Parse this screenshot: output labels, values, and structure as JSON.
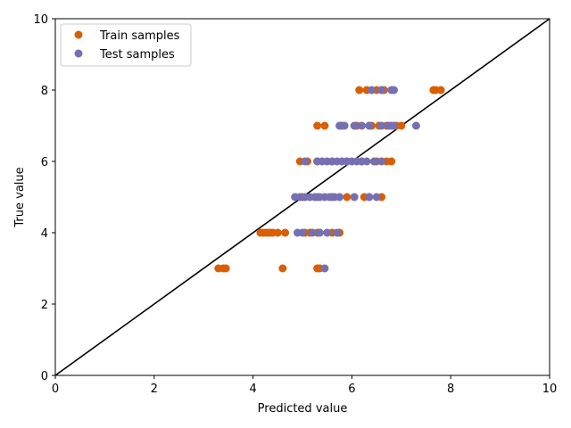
{
  "chart_data": {
    "type": "scatter",
    "xlabel": "Predicted value",
    "ylabel": "True value",
    "xlim": [
      0,
      10
    ],
    "ylim": [
      0,
      10
    ],
    "xticks": [
      "0",
      "2",
      "4",
      "6",
      "8",
      "10"
    ],
    "yticks": [
      "0",
      "2",
      "4",
      "6",
      "8",
      "10"
    ],
    "grid": false,
    "legend_position": "top-left",
    "reference_line": {
      "from": [
        0,
        0
      ],
      "to": [
        10,
        10
      ],
      "color": "#000000"
    },
    "series": [
      {
        "name": "Train samples",
        "color": "#d95f02",
        "points": [
          [
            3.3,
            3
          ],
          [
            3.4,
            3
          ],
          [
            3.45,
            3
          ],
          [
            4.6,
            3
          ],
          [
            5.3,
            3
          ],
          [
            5.35,
            3
          ],
          [
            4.15,
            4
          ],
          [
            4.2,
            4
          ],
          [
            4.25,
            4
          ],
          [
            4.3,
            4
          ],
          [
            4.35,
            4
          ],
          [
            4.4,
            4
          ],
          [
            4.5,
            4
          ],
          [
            4.65,
            4
          ],
          [
            5.05,
            4
          ],
          [
            5.15,
            4
          ],
          [
            5.3,
            4
          ],
          [
            5.6,
            4
          ],
          [
            5.75,
            4
          ],
          [
            5.0,
            5
          ],
          [
            5.3,
            5
          ],
          [
            5.6,
            5
          ],
          [
            5.9,
            5
          ],
          [
            6.25,
            5
          ],
          [
            6.35,
            5
          ],
          [
            6.6,
            5
          ],
          [
            4.95,
            6
          ],
          [
            5.1,
            6
          ],
          [
            5.3,
            6
          ],
          [
            5.6,
            6
          ],
          [
            5.9,
            6
          ],
          [
            6.2,
            6
          ],
          [
            6.5,
            6
          ],
          [
            6.7,
            6
          ],
          [
            6.8,
            6
          ],
          [
            5.3,
            7
          ],
          [
            5.45,
            7
          ],
          [
            5.8,
            7
          ],
          [
            6.1,
            7
          ],
          [
            6.4,
            7
          ],
          [
            6.55,
            7
          ],
          [
            6.7,
            7
          ],
          [
            6.8,
            7
          ],
          [
            6.9,
            7
          ],
          [
            7.0,
            7
          ],
          [
            6.15,
            8
          ],
          [
            6.3,
            8
          ],
          [
            6.5,
            8
          ],
          [
            6.65,
            8
          ],
          [
            7.65,
            8
          ],
          [
            7.7,
            8
          ],
          [
            7.8,
            8
          ]
        ]
      },
      {
        "name": "Test samples",
        "color": "#7570b3",
        "points": [
          [
            5.45,
            3
          ],
          [
            4.9,
            4
          ],
          [
            5.0,
            4
          ],
          [
            5.2,
            4
          ],
          [
            5.35,
            4
          ],
          [
            5.5,
            4
          ],
          [
            5.7,
            4
          ],
          [
            4.85,
            5
          ],
          [
            4.95,
            5
          ],
          [
            5.05,
            5
          ],
          [
            5.15,
            5
          ],
          [
            5.25,
            5
          ],
          [
            5.35,
            5
          ],
          [
            5.45,
            5
          ],
          [
            5.55,
            5
          ],
          [
            5.65,
            5
          ],
          [
            5.75,
            5
          ],
          [
            6.05,
            5
          ],
          [
            6.35,
            5
          ],
          [
            6.5,
            5
          ],
          [
            5.05,
            6
          ],
          [
            5.3,
            6
          ],
          [
            5.4,
            6
          ],
          [
            5.5,
            6
          ],
          [
            5.6,
            6
          ],
          [
            5.7,
            6
          ],
          [
            5.8,
            6
          ],
          [
            5.9,
            6
          ],
          [
            6.0,
            6
          ],
          [
            6.1,
            6
          ],
          [
            6.2,
            6
          ],
          [
            6.3,
            6
          ],
          [
            6.45,
            6
          ],
          [
            6.6,
            6
          ],
          [
            5.75,
            7
          ],
          [
            5.85,
            7
          ],
          [
            6.05,
            7
          ],
          [
            6.2,
            7
          ],
          [
            6.35,
            7
          ],
          [
            6.6,
            7
          ],
          [
            6.75,
            7
          ],
          [
            6.85,
            7
          ],
          [
            7.3,
            7
          ],
          [
            6.4,
            8
          ],
          [
            6.6,
            8
          ],
          [
            6.8,
            8
          ],
          [
            6.85,
            8
          ]
        ]
      }
    ]
  }
}
